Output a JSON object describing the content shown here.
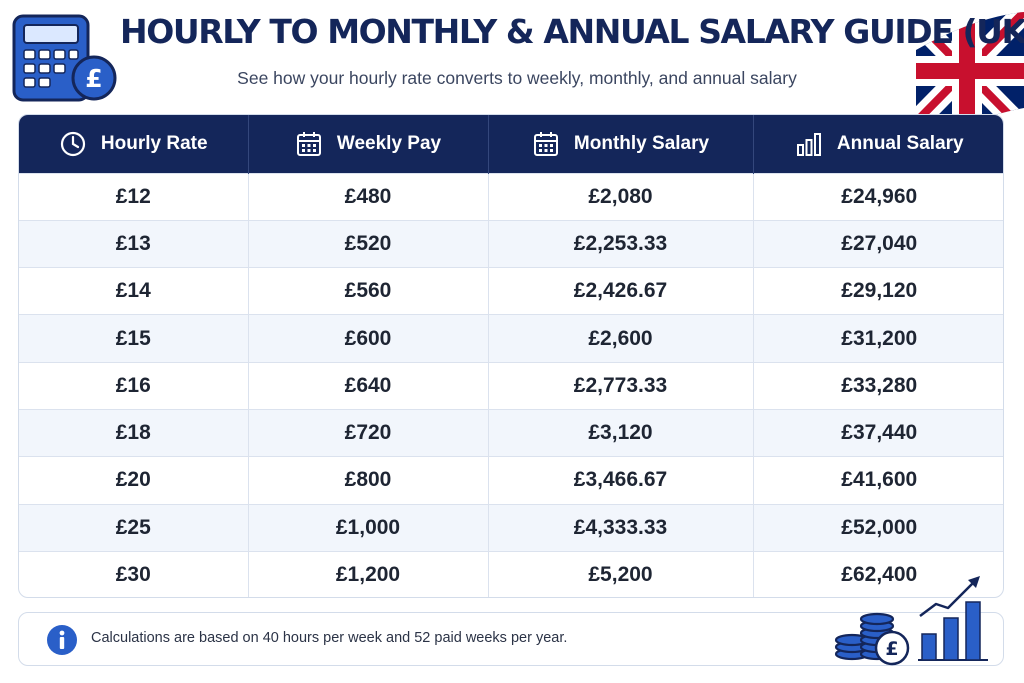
{
  "header": {
    "title": "HOURLY TO MONTHLY & ANNUAL SALARY GUIDE (UK)",
    "subtitle": "See how your hourly rate converts to weekly, monthly, and annual salary"
  },
  "icons": {
    "top_left": "calculator-pound-icon",
    "top_right": "uk-flag-icon",
    "bottom_right": "coins-growth-chart-icon",
    "footer": "info-icon"
  },
  "colors": {
    "navy": "#14265a",
    "accent_blue": "#2a5fc8",
    "row_alt": "#f2f6fc",
    "flag_red": "#c8102e"
  },
  "table": {
    "headers": [
      {
        "label": "Hourly Rate",
        "icon": "clock-icon"
      },
      {
        "label": "Weekly Pay",
        "icon": "calendar-icon"
      },
      {
        "label": "Monthly Salary",
        "icon": "calendar-icon"
      },
      {
        "label": "Annual Salary",
        "icon": "bar-chart-icon"
      }
    ],
    "rows": [
      [
        "£12",
        "£480",
        "£2,080",
        "£24,960"
      ],
      [
        "£13",
        "£520",
        "£2,253.33",
        "£27,040"
      ],
      [
        "£14",
        "£560",
        "£2,426.67",
        "£29,120"
      ],
      [
        "£15",
        "£600",
        "£2,600",
        "£31,200"
      ],
      [
        "£16",
        "£640",
        "£2,773.33",
        "£33,280"
      ],
      [
        "£18",
        "£720",
        "£3,120",
        "£37,440"
      ],
      [
        "£20",
        "£800",
        "£3,466.67",
        "£41,600"
      ],
      [
        "£25",
        "£1,000",
        "£4,333.33",
        "£52,000"
      ],
      [
        "£30",
        "£1,200",
        "£5,200",
        "£62,400"
      ]
    ]
  },
  "footer": {
    "note": "Calculations are based on 40 hours per week and 52 paid weeks per year."
  }
}
